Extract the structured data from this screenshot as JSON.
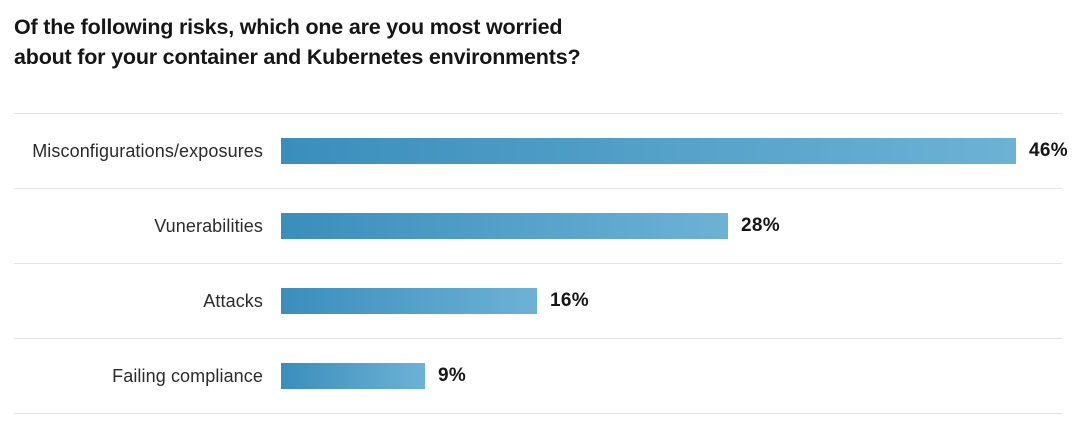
{
  "title": {
    "line1": "Of the following risks, which one are you most worried",
    "line2": "about for your container and Kubernetes environments?"
  },
  "chart_data": {
    "type": "bar",
    "orientation": "horizontal",
    "title": "Of the following risks, which one are you most worried about for your container and Kubernetes environments?",
    "categories": [
      "Misconfigurations/exposures",
      "Vunerabilities",
      "Attacks",
      "Failing compliance"
    ],
    "values": [
      46,
      28,
      16,
      9
    ],
    "value_labels": [
      "46%",
      "28%",
      "16%",
      "9%"
    ],
    "xlabel": "",
    "ylabel": "",
    "xlim": [
      0,
      49
    ],
    "grid": false,
    "legend": false,
    "axis_ticks_visible": false,
    "colors": {
      "bar_gradient_start": "#3a8ebc",
      "bar_gradient_end": "#6cb2d5",
      "divider": "#e4e4e4",
      "title_text": "#161616",
      "category_text": "#2b2b2b",
      "value_text": "#161616",
      "background": "#ffffff"
    }
  }
}
